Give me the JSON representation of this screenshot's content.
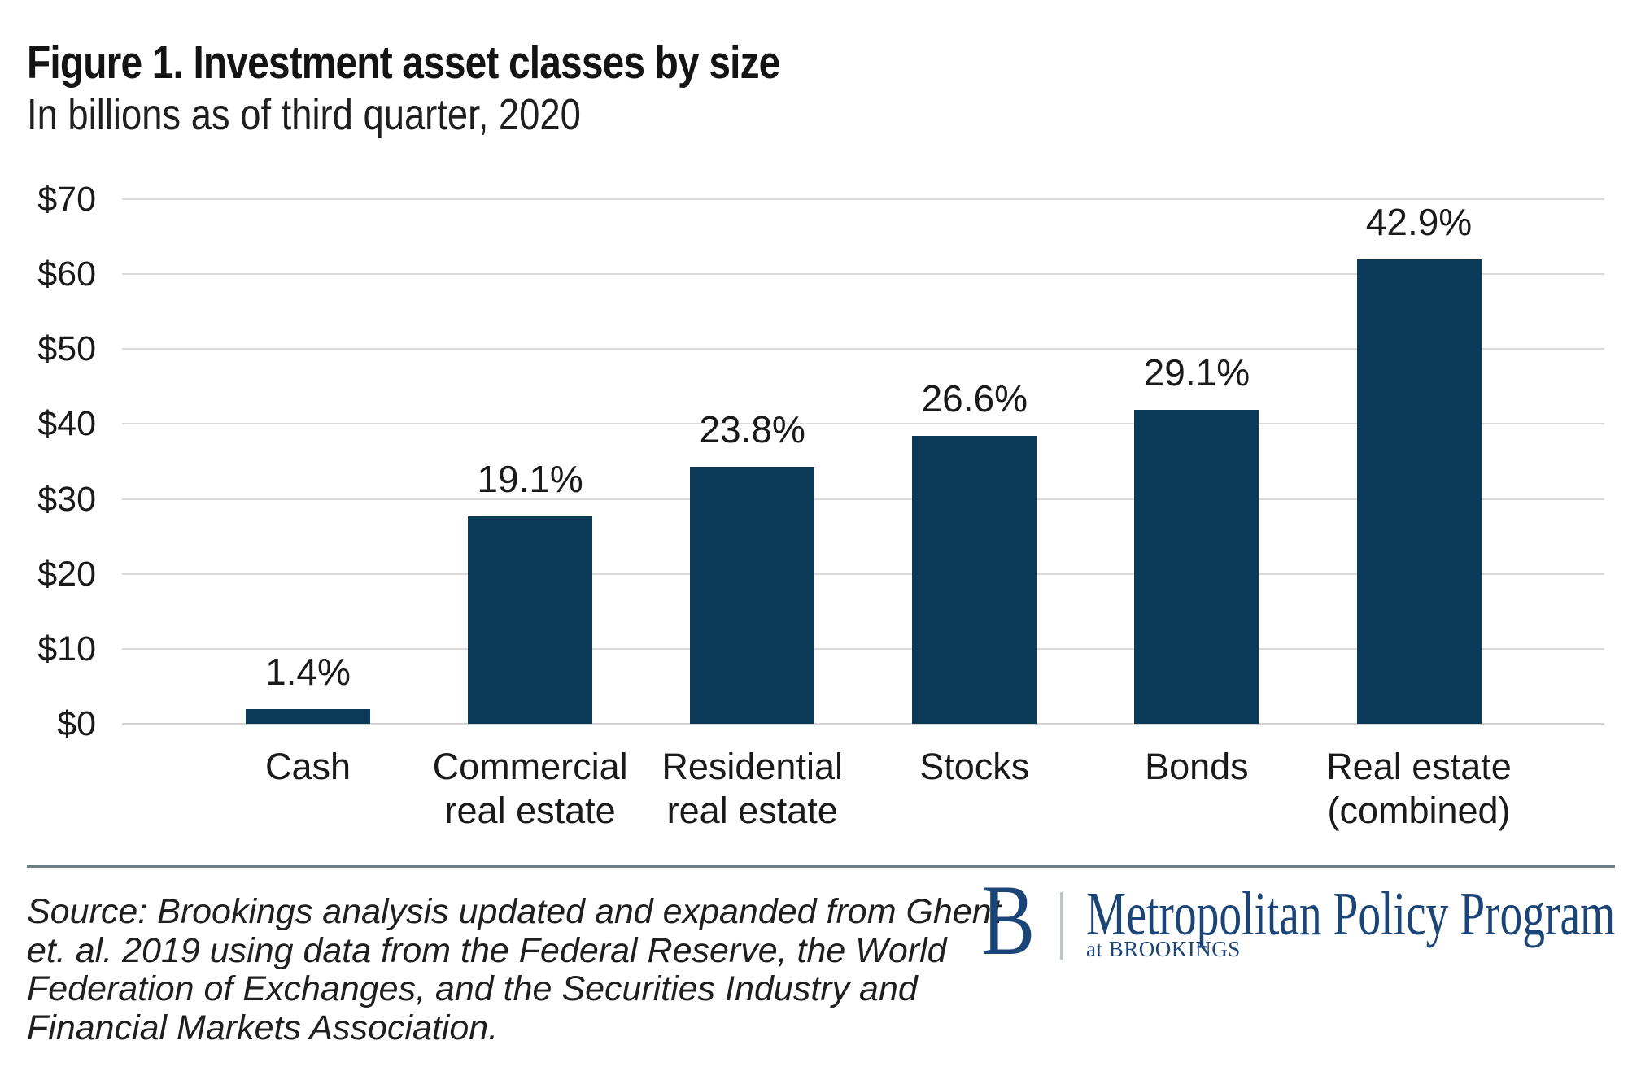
{
  "header": {
    "title": "Figure 1. Investment asset classes by size",
    "subtitle": "In billions as of third quarter, 2020"
  },
  "chart_data": {
    "type": "bar",
    "title": "Figure 1. Investment asset classes by size",
    "subtitle": "In billions as of third quarter, 2020",
    "categories": [
      "Cash",
      "Commercial real estate",
      "Residential real estate",
      "Stocks",
      "Bonds",
      "Real estate (combined)"
    ],
    "category_lines": [
      [
        "Cash"
      ],
      [
        "Commercial",
        "real estate"
      ],
      [
        "Residential",
        "real estate"
      ],
      [
        "Stocks"
      ],
      [
        "Bonds"
      ],
      [
        "Real estate",
        "(combined)"
      ]
    ],
    "values": [
      2.0,
      27.7,
      34.3,
      38.4,
      41.9,
      62.0
    ],
    "bar_labels": [
      "1.4%",
      "19.1%",
      "23.8%",
      "26.6%",
      "29.1%",
      "42.9%"
    ],
    "y_ticks": [
      "$0",
      "$10",
      "$20",
      "$30",
      "$40",
      "$50",
      "$60",
      "$70"
    ],
    "ylim": [
      0,
      70
    ],
    "grid": true,
    "legend": "none",
    "xlabel": "",
    "ylabel": "",
    "bar_color": "#0a3a57"
  },
  "footer": {
    "source_lines": [
      "Source: Brookings analysis updated and expanded from Ghent",
      "et. al. 2019 using data from the Federal Reserve, the World",
      "Federation of Exchanges, and the Securities Industry and",
      "Financial Markets Association."
    ],
    "logo": {
      "monogram": "B",
      "program_name": "Metropolitan Policy Program",
      "tagline": "at BROOKINGS"
    }
  },
  "colors": {
    "bar": "#0a3a57",
    "gridline": "#dadada",
    "divider": "#6e7c86",
    "logo_navy": "#1c4577",
    "logo_rule": "#b9c5d1",
    "text": "#1a1a1a"
  }
}
